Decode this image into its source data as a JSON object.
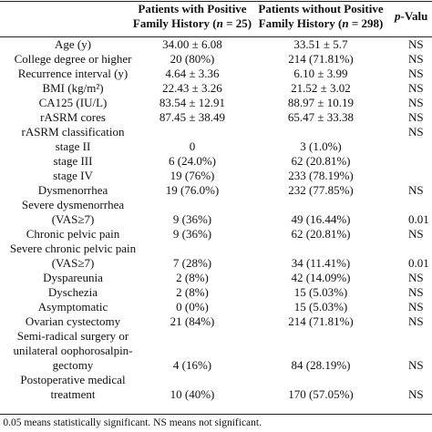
{
  "header": {
    "col1_line1": "Patients with Positive",
    "col1_line2_prefix": "Family History (",
    "col1_line2_n": "n",
    "col1_line2_suffix": " = 25)",
    "col2_line1": "Patients without Positive",
    "col2_line2_prefix": "Family History (",
    "col2_line2_n": "n",
    "col2_line2_suffix": " = 298)",
    "col3_p": "p",
    "col3_rest": "-Valu"
  },
  "rows": [
    {
      "label": [
        "Age (y)"
      ],
      "v1": "34.00 ± 6.08",
      "v2": "33.51 ± 5.7",
      "p": "NS"
    },
    {
      "label": [
        "College degree or higher"
      ],
      "v1": "20 (80%)",
      "v2": "214 (71.81%)",
      "p": "NS"
    },
    {
      "label": [
        "Recurrence interval (y)"
      ],
      "v1": "4.64 ± 3.36",
      "v2": "6.10 ± 3.99",
      "p": "NS"
    },
    {
      "label": [
        "BMI (kg/m²)"
      ],
      "v1": "22.43 ± 3.26",
      "v2": "21.52 ± 3.02",
      "p": "NS"
    },
    {
      "label": [
        "CA125 (IU/L)"
      ],
      "v1": "83.54 ± 12.91",
      "v2": "88.97 ± 10.19",
      "p": "NS"
    },
    {
      "label": [
        "rASRM cores"
      ],
      "v1": "87.45 ± 38.49",
      "v2": "65.47 ± 33.38",
      "p": "NS"
    },
    {
      "label": [
        "rASRM classification"
      ],
      "v1": "",
      "v2": "",
      "p": "NS"
    },
    {
      "label": [
        "stage II"
      ],
      "v1": "0",
      "v2": "3 (1.0%)",
      "p": ""
    },
    {
      "label": [
        "stage III"
      ],
      "v1": "6 (24.0%)",
      "v2": "62 (20.81%)",
      "p": ""
    },
    {
      "label": [
        "stage IV"
      ],
      "v1": "19 (76%)",
      "v2": "233 (78.19%)",
      "p": ""
    },
    {
      "label": [
        "Dysmenorrhea"
      ],
      "v1": "19 (76.0%)",
      "v2": "232 (77.85%)",
      "p": "NS"
    },
    {
      "label": [
        "Severe dysmenorrhea",
        "(VAS≥7)"
      ],
      "v1": "9 (36%)",
      "v2": "49 (16.44%)",
      "p": "0.01"
    },
    {
      "label": [
        "Chronic pelvic pain"
      ],
      "v1": "9 (36%)",
      "v2": "62 (20.81%)",
      "p": "NS"
    },
    {
      "label": [
        "Severe chronic pelvic pain",
        "(VAS≥7)"
      ],
      "v1": "7 (28%)",
      "v2": "34 (11.41%)",
      "p": "0.01"
    },
    {
      "label": [
        "Dyspareunia"
      ],
      "v1": "2 (8%)",
      "v2": "42 (14.09%)",
      "p": "NS"
    },
    {
      "label": [
        "Dyschezia"
      ],
      "v1": "2 (8%)",
      "v2": "15 (5.03%)",
      "p": "NS"
    },
    {
      "label": [
        "Asymptomatic"
      ],
      "v1": "0 (0%)",
      "v2": "15 (5.03%)",
      "p": "NS"
    },
    {
      "label": [
        "Ovarian cystectomy"
      ],
      "v1": "21 (84%)",
      "v2": "214 (71.81%)",
      "p": "NS"
    },
    {
      "label": [
        "Semi-radical surgery or",
        "unilateral oophorosalpin-",
        "gectomy"
      ],
      "v1": "4 (16%)",
      "v2": "84 (28.19%)",
      "p": "NS"
    },
    {
      "label": [
        "Postoperative medical",
        "treatment"
      ],
      "v1": "10 (40%)",
      "v2": "170 (57.05%)",
      "p": "NS"
    }
  ],
  "footnote": "< 0.05 means statistically significant. NS means not significant."
}
